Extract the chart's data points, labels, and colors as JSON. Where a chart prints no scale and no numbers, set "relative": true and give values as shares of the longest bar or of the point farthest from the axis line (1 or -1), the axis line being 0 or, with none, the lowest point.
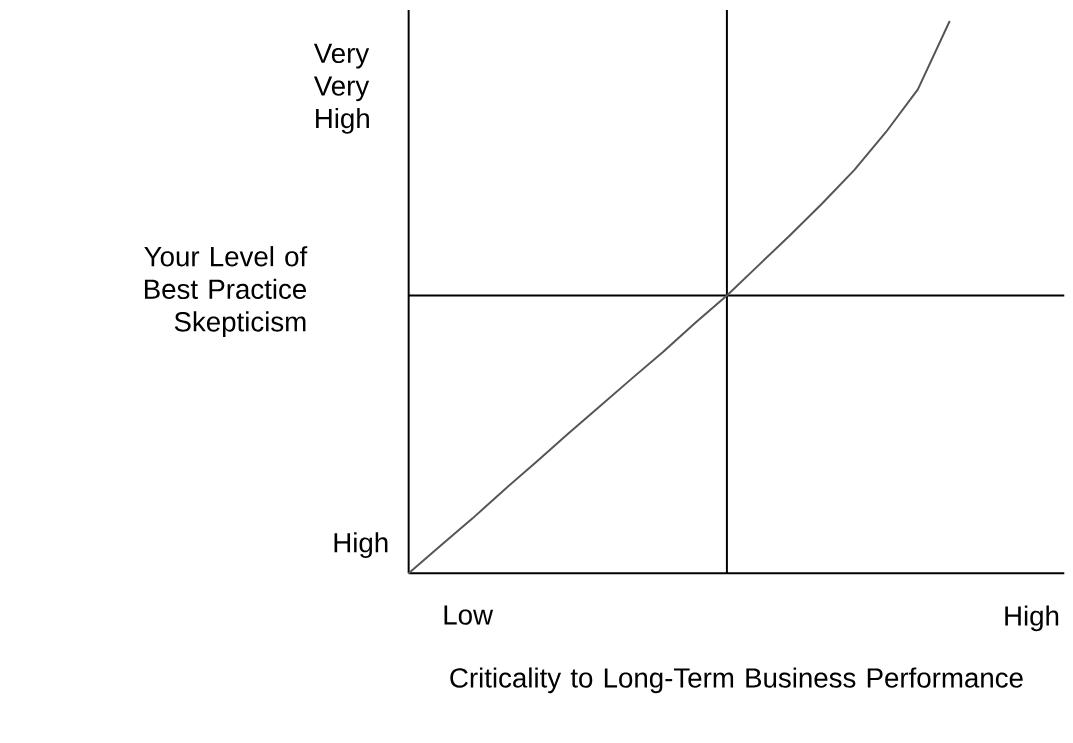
{
  "chart_data": {
    "type": "line",
    "relative": true,
    "xlabel": "Criticality to Long-Term Business Performance",
    "ylabel": "Your Level of Best Practice Skepticism",
    "categories": [
      null,
      null,
      null,
      null,
      null,
      null,
      null,
      null,
      null,
      null,
      null,
      null,
      null,
      null,
      null,
      null,
      null,
      null,
      null,
      null,
      null
    ],
    "series": [
      {
        "color": "#555555",
        "values": [
          0,
          0.05,
          0.099,
          0.151,
          0.201,
          0.252,
          0.302,
          0.352,
          0.401,
          0.453,
          0.503,
          0.558,
          0.613,
          0.67,
          0.73,
          0.799,
          0.876,
          1,
          null,
          null,
          null
        ]
      }
    ],
    "ref_lines": [
      {
        "axis": "y",
        "value": 0.503,
        "color": "#000000"
      }
    ],
    "annotations": [
      "Low",
      "High",
      "High",
      "Very Very High"
    ]
  }
}
